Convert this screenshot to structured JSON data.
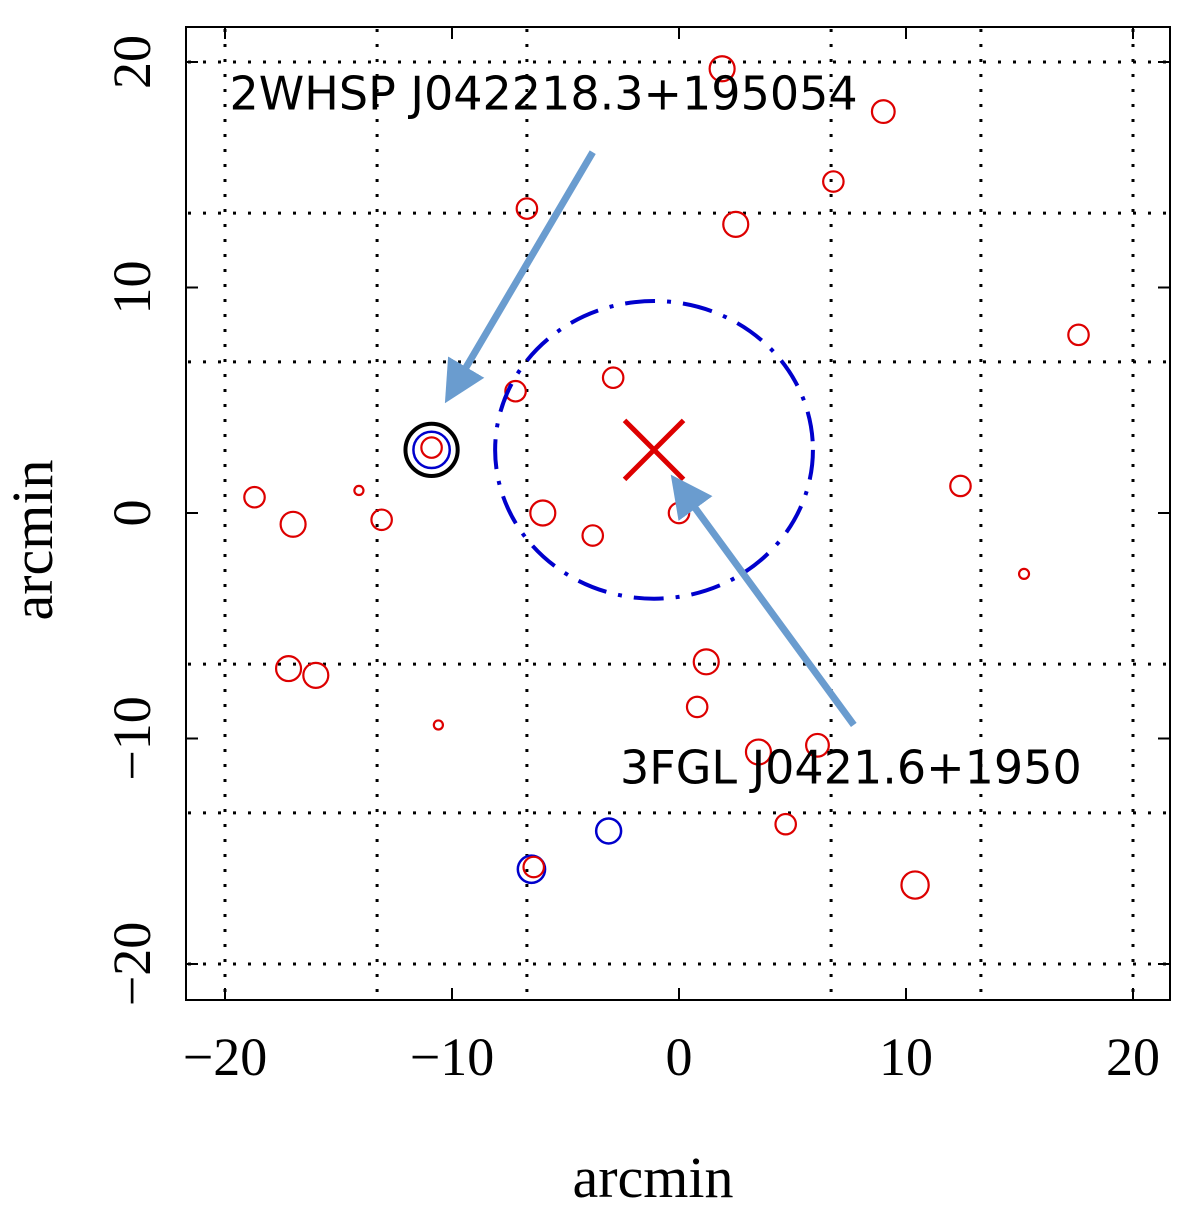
{
  "chart_data": {
    "type": "scatter",
    "title": "",
    "xlabel": "arcmin",
    "ylabel": "arcmin",
    "xlim": [
      -21.7,
      21.7
    ],
    "ylim": [
      -21.7,
      21.7
    ],
    "grid": true,
    "x_ticks": [
      -20,
      -10,
      0,
      10,
      20
    ],
    "y_ticks": [
      -20,
      -10,
      0,
      10,
      20
    ],
    "x_tick_labels": [
      "−20",
      "−10",
      "0",
      "10",
      "20"
    ],
    "y_tick_labels": [
      "−20",
      "−10",
      "0",
      "10",
      "20"
    ],
    "grid_x": [
      -20,
      -13.3,
      -6.7,
      6.7,
      13.3,
      20
    ],
    "grid_y": [
      -20,
      -13.3,
      -6.7,
      6.7,
      13.3,
      20
    ],
    "colors": {
      "red": "#dd0000",
      "blue": "#0000cc",
      "black": "#000000",
      "arrow": "#6a9ccf"
    },
    "red_sources": [
      {
        "x": 1.9,
        "y": 19.7,
        "r": 0.55
      },
      {
        "x": 9.0,
        "y": 17.8,
        "r": 0.5
      },
      {
        "x": 6.8,
        "y": 14.7,
        "r": 0.45
      },
      {
        "x": -6.7,
        "y": 13.5,
        "r": 0.45
      },
      {
        "x": 2.5,
        "y": 12.8,
        "r": 0.55
      },
      {
        "x": 17.6,
        "y": 7.9,
        "r": 0.45
      },
      {
        "x": -2.9,
        "y": 6.0,
        "r": 0.45
      },
      {
        "x": -7.2,
        "y": 5.4,
        "r": 0.45
      },
      {
        "x": -10.9,
        "y": 2.9,
        "r": 0.45
      },
      {
        "x": 12.4,
        "y": 1.2,
        "r": 0.45
      },
      {
        "x": -18.7,
        "y": 0.7,
        "r": 0.45
      },
      {
        "x": -14.1,
        "y": 1.0,
        "r": 0.2
      },
      {
        "x": -17.0,
        "y": -0.5,
        "r": 0.55
      },
      {
        "x": -13.1,
        "y": -0.3,
        "r": 0.45
      },
      {
        "x": -6.0,
        "y": 0.0,
        "r": 0.55
      },
      {
        "x": 0.0,
        "y": 0.0,
        "r": 0.45
      },
      {
        "x": -3.8,
        "y": -1.0,
        "r": 0.45
      },
      {
        "x": 15.2,
        "y": -2.7,
        "r": 0.22
      },
      {
        "x": -17.2,
        "y": -6.9,
        "r": 0.55
      },
      {
        "x": -16.0,
        "y": -7.2,
        "r": 0.55
      },
      {
        "x": 1.2,
        "y": -6.6,
        "r": 0.55
      },
      {
        "x": 0.8,
        "y": -8.6,
        "r": 0.45
      },
      {
        "x": -10.6,
        "y": -9.4,
        "r": 0.2
      },
      {
        "x": 3.5,
        "y": -10.6,
        "r": 0.55
      },
      {
        "x": 6.1,
        "y": -10.3,
        "r": 0.5
      },
      {
        "x": 4.7,
        "y": -13.8,
        "r": 0.45
      },
      {
        "x": -6.4,
        "y": -15.7,
        "r": 0.45
      },
      {
        "x": 10.4,
        "y": -16.5,
        "r": 0.6
      }
    ],
    "blue_sources": [
      {
        "x": -10.9,
        "y": 2.8,
        "r": 0.8
      },
      {
        "x": -3.1,
        "y": -14.1,
        "r": 0.55
      },
      {
        "x": -6.5,
        "y": -15.8,
        "r": 0.6
      }
    ],
    "black_sources": [
      {
        "x": -10.9,
        "y": 2.8,
        "r": 1.15
      }
    ],
    "fermi_ellipse": {
      "cx": -1.1,
      "cy": 2.8,
      "rx": 7.0,
      "ry": 6.6
    },
    "fermi_center": {
      "x": -1.1,
      "y": 2.8,
      "size": 1.3
    },
    "annotations": [
      {
        "label": "2WHSP J042218.3+195054",
        "text_x": -19.8,
        "text_y": 17.9,
        "arrow_from": [
          -3.8,
          16.0
        ],
        "arrow_to": [
          -10.0,
          5.4
        ]
      },
      {
        "label": "3FGL J0421.6+1950",
        "text_x": -2.6,
        "text_y": -12.0,
        "arrow_from": [
          7.7,
          -9.4
        ],
        "arrow_to": [
          0.0,
          1.2
        ]
      }
    ]
  }
}
